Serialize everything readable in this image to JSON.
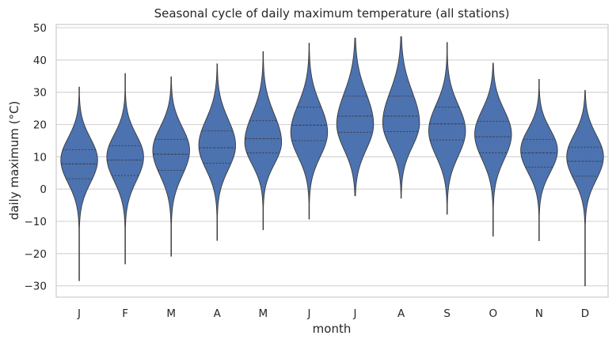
{
  "chart_data": {
    "type": "violin",
    "title": "Seasonal cycle of daily maximum temperature (all stations)",
    "xlabel": "month",
    "ylabel": "daily maximum (°C)",
    "categories": [
      "J",
      "F",
      "M",
      "A",
      "M",
      "J",
      "J",
      "A",
      "S",
      "O",
      "N",
      "D"
    ],
    "yticks": [
      -30,
      -20,
      -10,
      0,
      10,
      20,
      30,
      40,
      50
    ],
    "ylim": [
      -33.5,
      51
    ],
    "grid": "horizontal",
    "color": "#4c72b0",
    "violins": [
      {
        "min": -28.4,
        "q1": 3.2,
        "median": 7.8,
        "q3": 12.2,
        "max": 31.6,
        "mode": 9.0
      },
      {
        "min": -23.2,
        "q1": 4.2,
        "median": 9.0,
        "q3": 13.4,
        "max": 35.8,
        "mode": 10.0
      },
      {
        "min": -20.8,
        "q1": 5.8,
        "median": 10.8,
        "q3": 15.4,
        "max": 34.8,
        "mode": 12.0
      },
      {
        "min": -15.9,
        "q1": 8.0,
        "median": 12.8,
        "q3": 18.0,
        "max": 38.8,
        "mode": 13.5
      },
      {
        "min": -12.6,
        "q1": 11.2,
        "median": 15.6,
        "q3": 21.2,
        "max": 42.6,
        "mode": 14.5
      },
      {
        "min": -9.3,
        "q1": 15.0,
        "median": 19.8,
        "q3": 25.4,
        "max": 45.2,
        "mode": 17.5
      },
      {
        "min": -2.1,
        "q1": 17.6,
        "median": 22.6,
        "q3": 28.8,
        "max": 46.8,
        "mode": 20.0
      },
      {
        "min": -2.8,
        "q1": 17.8,
        "median": 22.6,
        "q3": 28.8,
        "max": 47.2,
        "mode": 20.5
      },
      {
        "min": -7.8,
        "q1": 15.2,
        "median": 20.2,
        "q3": 25.4,
        "max": 45.4,
        "mode": 18.0
      },
      {
        "min": -14.6,
        "q1": 11.2,
        "median": 16.2,
        "q3": 21.0,
        "max": 39.0,
        "mode": 17.0
      },
      {
        "min": -16.0,
        "q1": 6.8,
        "median": 11.2,
        "q3": 15.4,
        "max": 34.0,
        "mode": 12.0
      },
      {
        "min": -30.0,
        "q1": 4.0,
        "median": 8.6,
        "q3": 13.0,
        "max": 30.6,
        "mode": 10.0
      }
    ]
  }
}
